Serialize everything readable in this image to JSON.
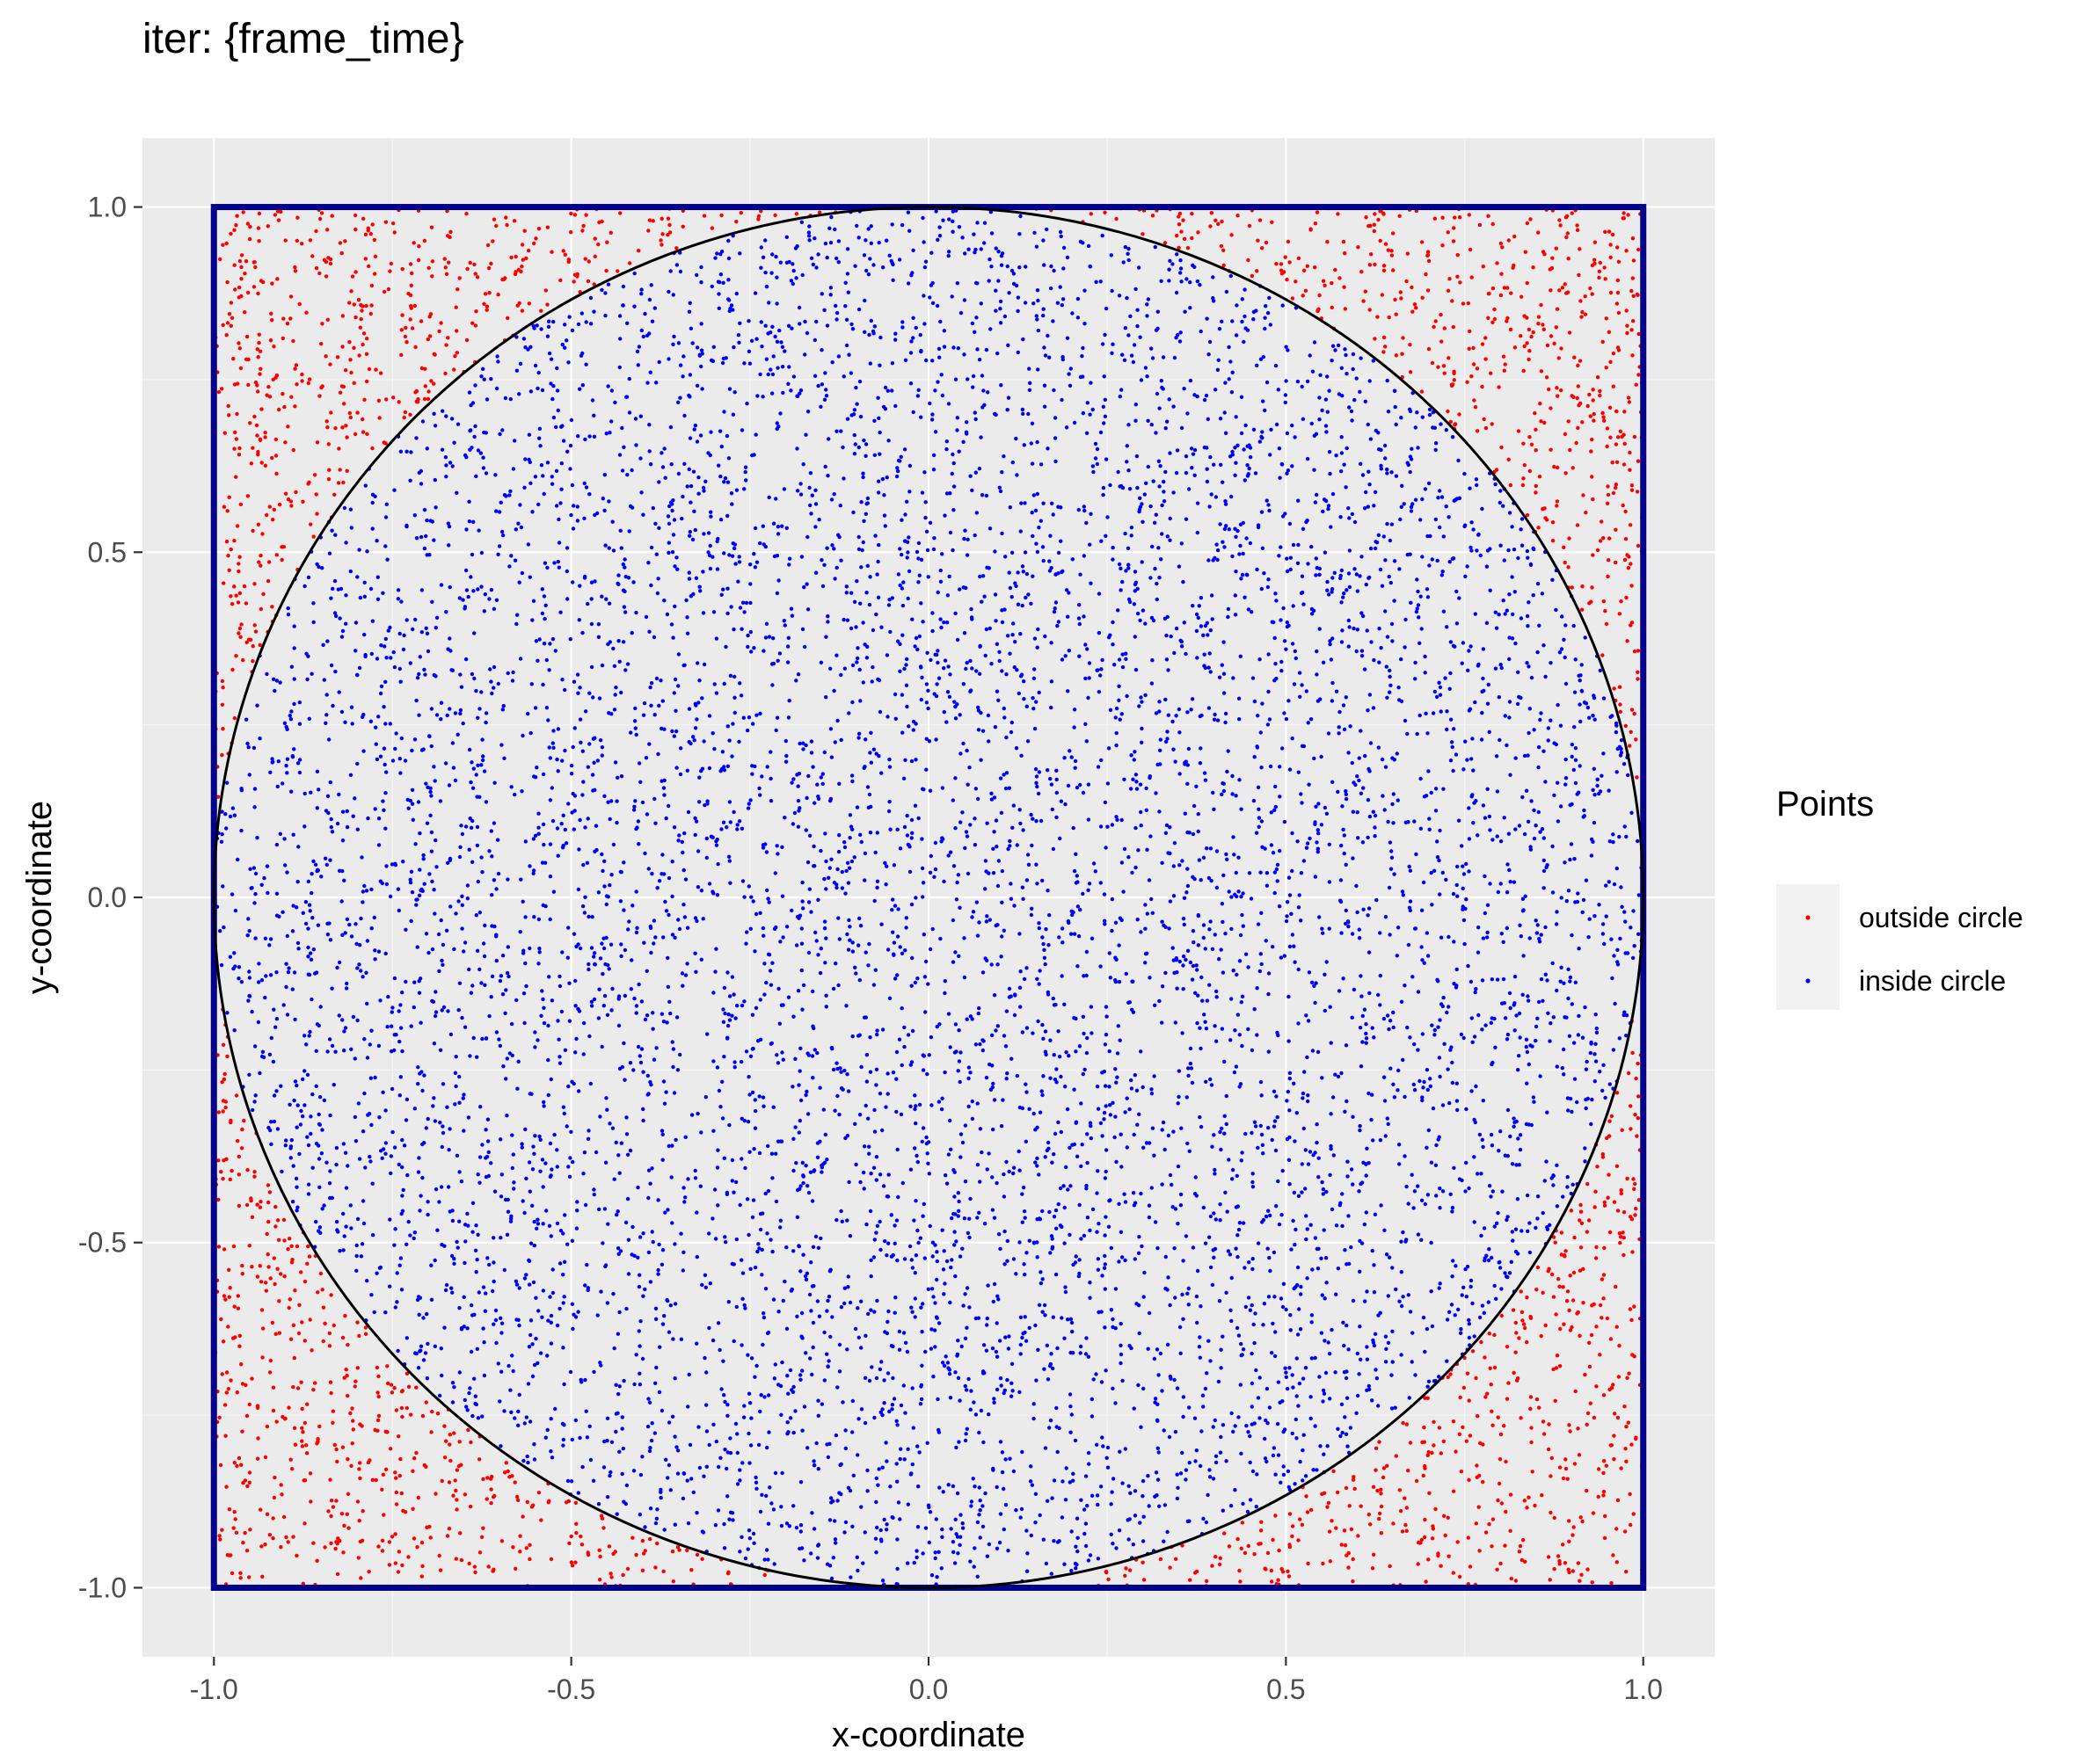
{
  "chart_data": {
    "type": "scatter",
    "title": "iter: {frame_time}",
    "xlabel": "x-coordinate",
    "ylabel": "y-coordinate",
    "xlim": [
      -1.1,
      1.1
    ],
    "ylim": [
      -1.1,
      1.1
    ],
    "x_ticks": [
      -1.0,
      -0.5,
      0.0,
      0.5,
      1.0
    ],
    "y_ticks": [
      -1.0,
      -0.5,
      0.0,
      0.5,
      1.0
    ],
    "x_tick_labels": [
      "-1.0",
      "-0.5",
      "0.0",
      "0.5",
      "1.0"
    ],
    "y_tick_labels": [
      "-1.0",
      "-0.5",
      "0.0",
      "0.5",
      "1.0"
    ],
    "grid": true,
    "legend": {
      "title": "Points",
      "position": "right",
      "entries": [
        {
          "label": "outside circle",
          "color": "#ff0000"
        },
        {
          "label": "inside circle",
          "color": "#0000ff"
        }
      ]
    },
    "square": {
      "xmin": -1.0,
      "xmax": 1.0,
      "ymin": -1.0,
      "ymax": 1.0,
      "color": "#00008b"
    },
    "circle": {
      "cx": 0.0,
      "cy": 0.0,
      "r": 1.0,
      "color": "#000000"
    },
    "points_sampling": "uniform random in [-1,1] x [-1,1]",
    "approx_point_count": 10000,
    "series": [
      {
        "name": "outside circle",
        "color": "#ff0000",
        "condition": "x^2 + y^2 > 1"
      },
      {
        "name": "inside circle",
        "color": "#0000ff",
        "condition": "x^2 + y^2 <= 1"
      }
    ]
  },
  "colors": {
    "panel_background": "#ebebeb",
    "major_grid": "#ffffff",
    "minor_grid": "#f5f5f5",
    "tick_label": "#4d4d4d",
    "legend_key_background": "#f2f2f2"
  }
}
